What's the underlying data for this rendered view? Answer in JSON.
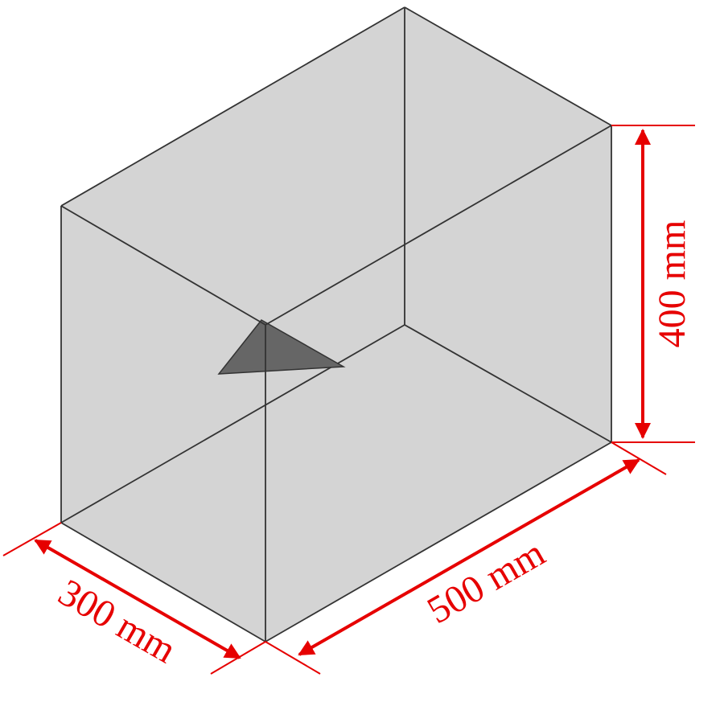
{
  "dimensions": {
    "width_label": "300 mm",
    "length_label": "500 mm",
    "height_label": "400 mm"
  },
  "colors": {
    "box_face": "#d4d4d4",
    "edge": "#333333",
    "triangle": "#666666",
    "dimension": "#e60000"
  }
}
